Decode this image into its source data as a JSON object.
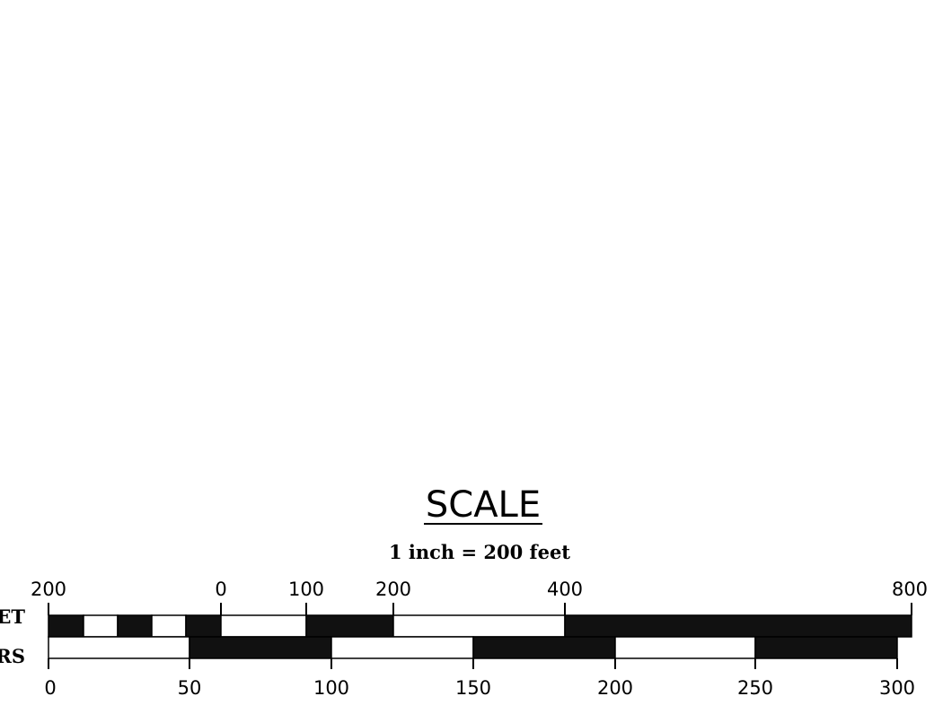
{
  "title": "SCALE",
  "subtitle": "1 inch = 200 feet",
  "feet_row": {
    "label": "FEET",
    "ticks": [
      "200",
      "0",
      "100",
      "200",
      "400",
      "800"
    ],
    "segments": [
      "black",
      "white",
      "black",
      "white",
      "black",
      "white",
      "black",
      "white",
      "black"
    ]
  },
  "meters_row": {
    "label": "METERS",
    "ticks": [
      "0",
      "50",
      "100",
      "150",
      "200",
      "250",
      "300"
    ],
    "segments": [
      "white",
      "black",
      "white",
      "black",
      "white",
      "black"
    ]
  },
  "colors": {
    "fill_dark": "#111111",
    "fill_light": "#ffffff",
    "stroke": "#000000"
  }
}
